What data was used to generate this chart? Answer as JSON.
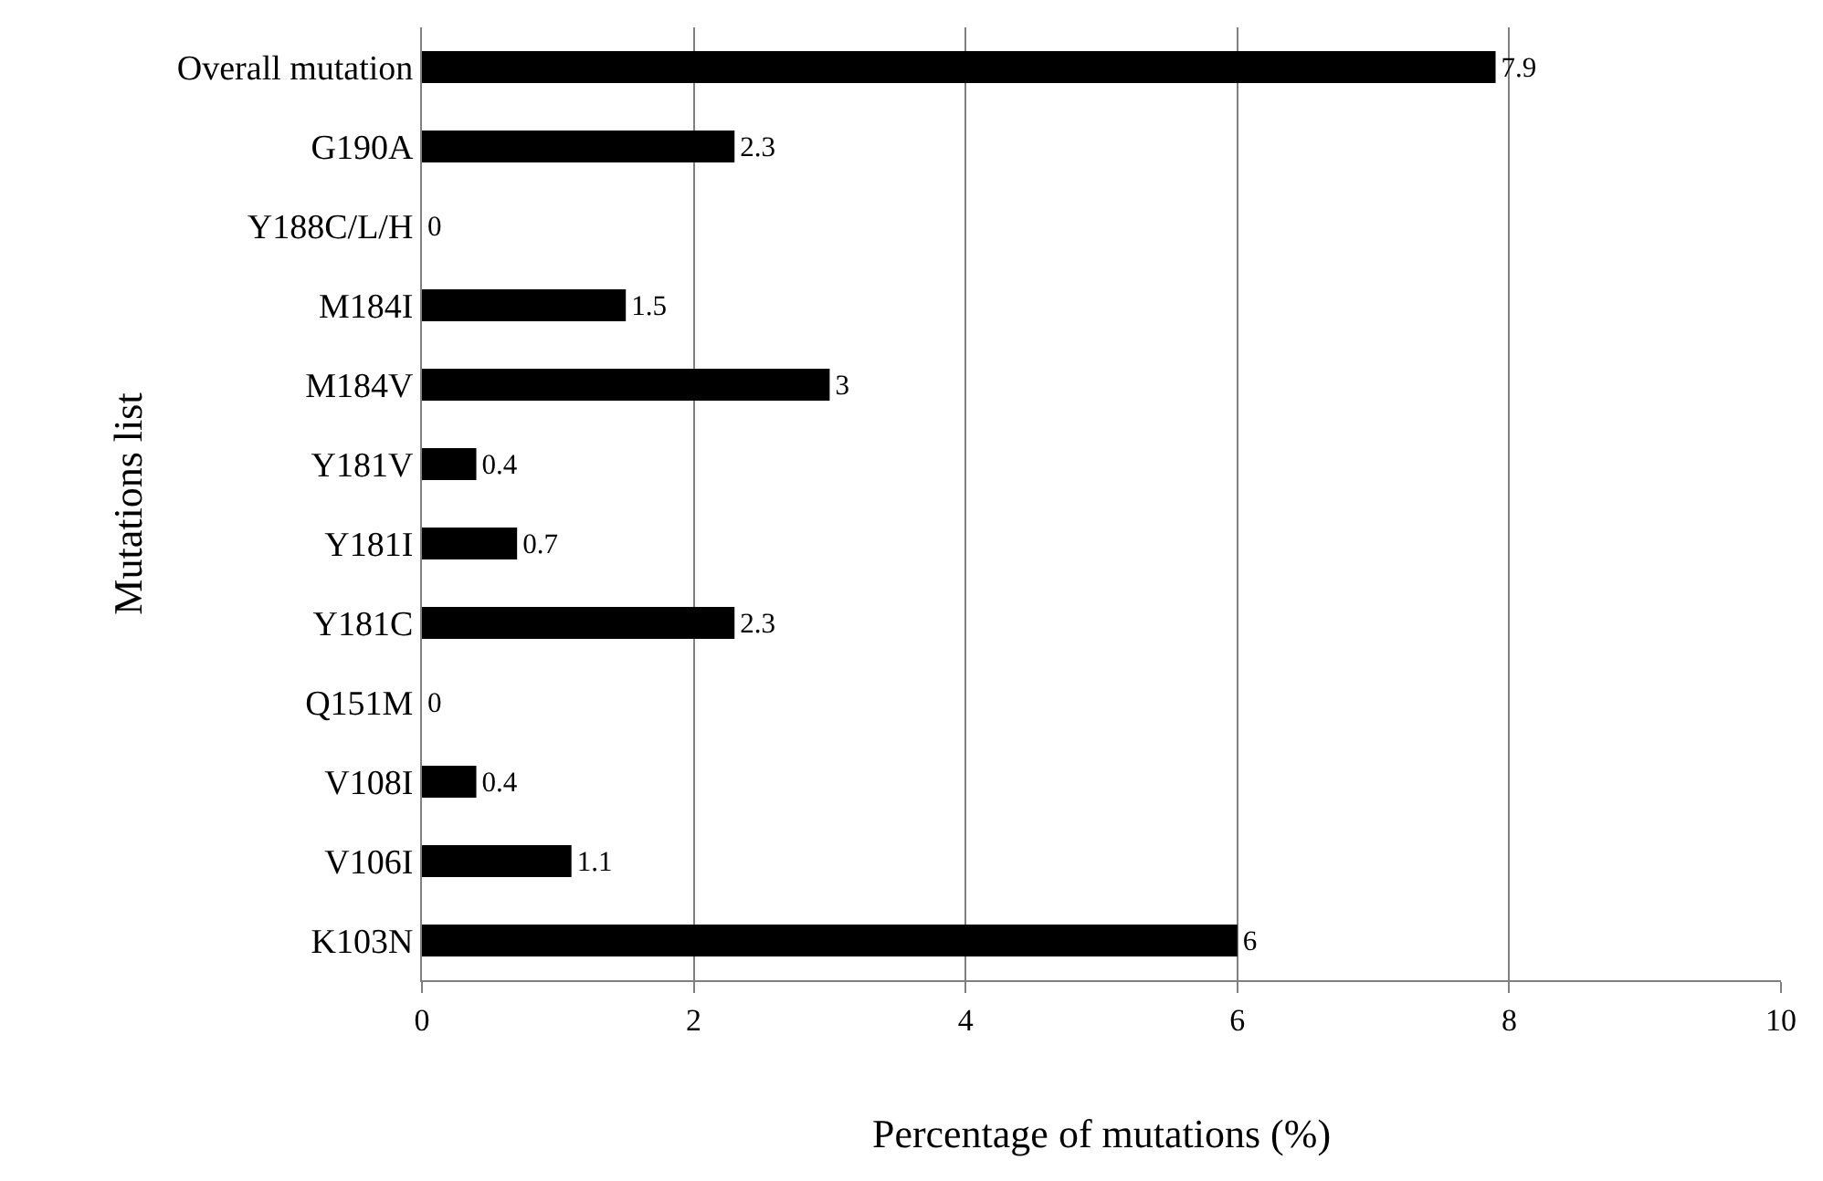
{
  "chart_data": {
    "type": "bar",
    "orientation": "horizontal",
    "xlabel": "Percentage of mutations (%)",
    "ylabel": "Mutations list",
    "categories": [
      "Overall mutation",
      "G190A",
      "Y188C/L/H",
      "M184I",
      "M184V",
      "Y181V",
      "Y181I",
      "Y181C",
      "Q151M",
      "V108I",
      "V106I",
      "K103N"
    ],
    "values": [
      7.9,
      2.3,
      0,
      1.5,
      3,
      0.4,
      0.7,
      2.3,
      0,
      0.4,
      1.1,
      6
    ],
    "color": "#000000",
    "xlim": [
      0,
      10
    ],
    "xticks": [
      0,
      2,
      4,
      6,
      8,
      10
    ],
    "grid": "x",
    "data_labels": true,
    "legend": false
  }
}
